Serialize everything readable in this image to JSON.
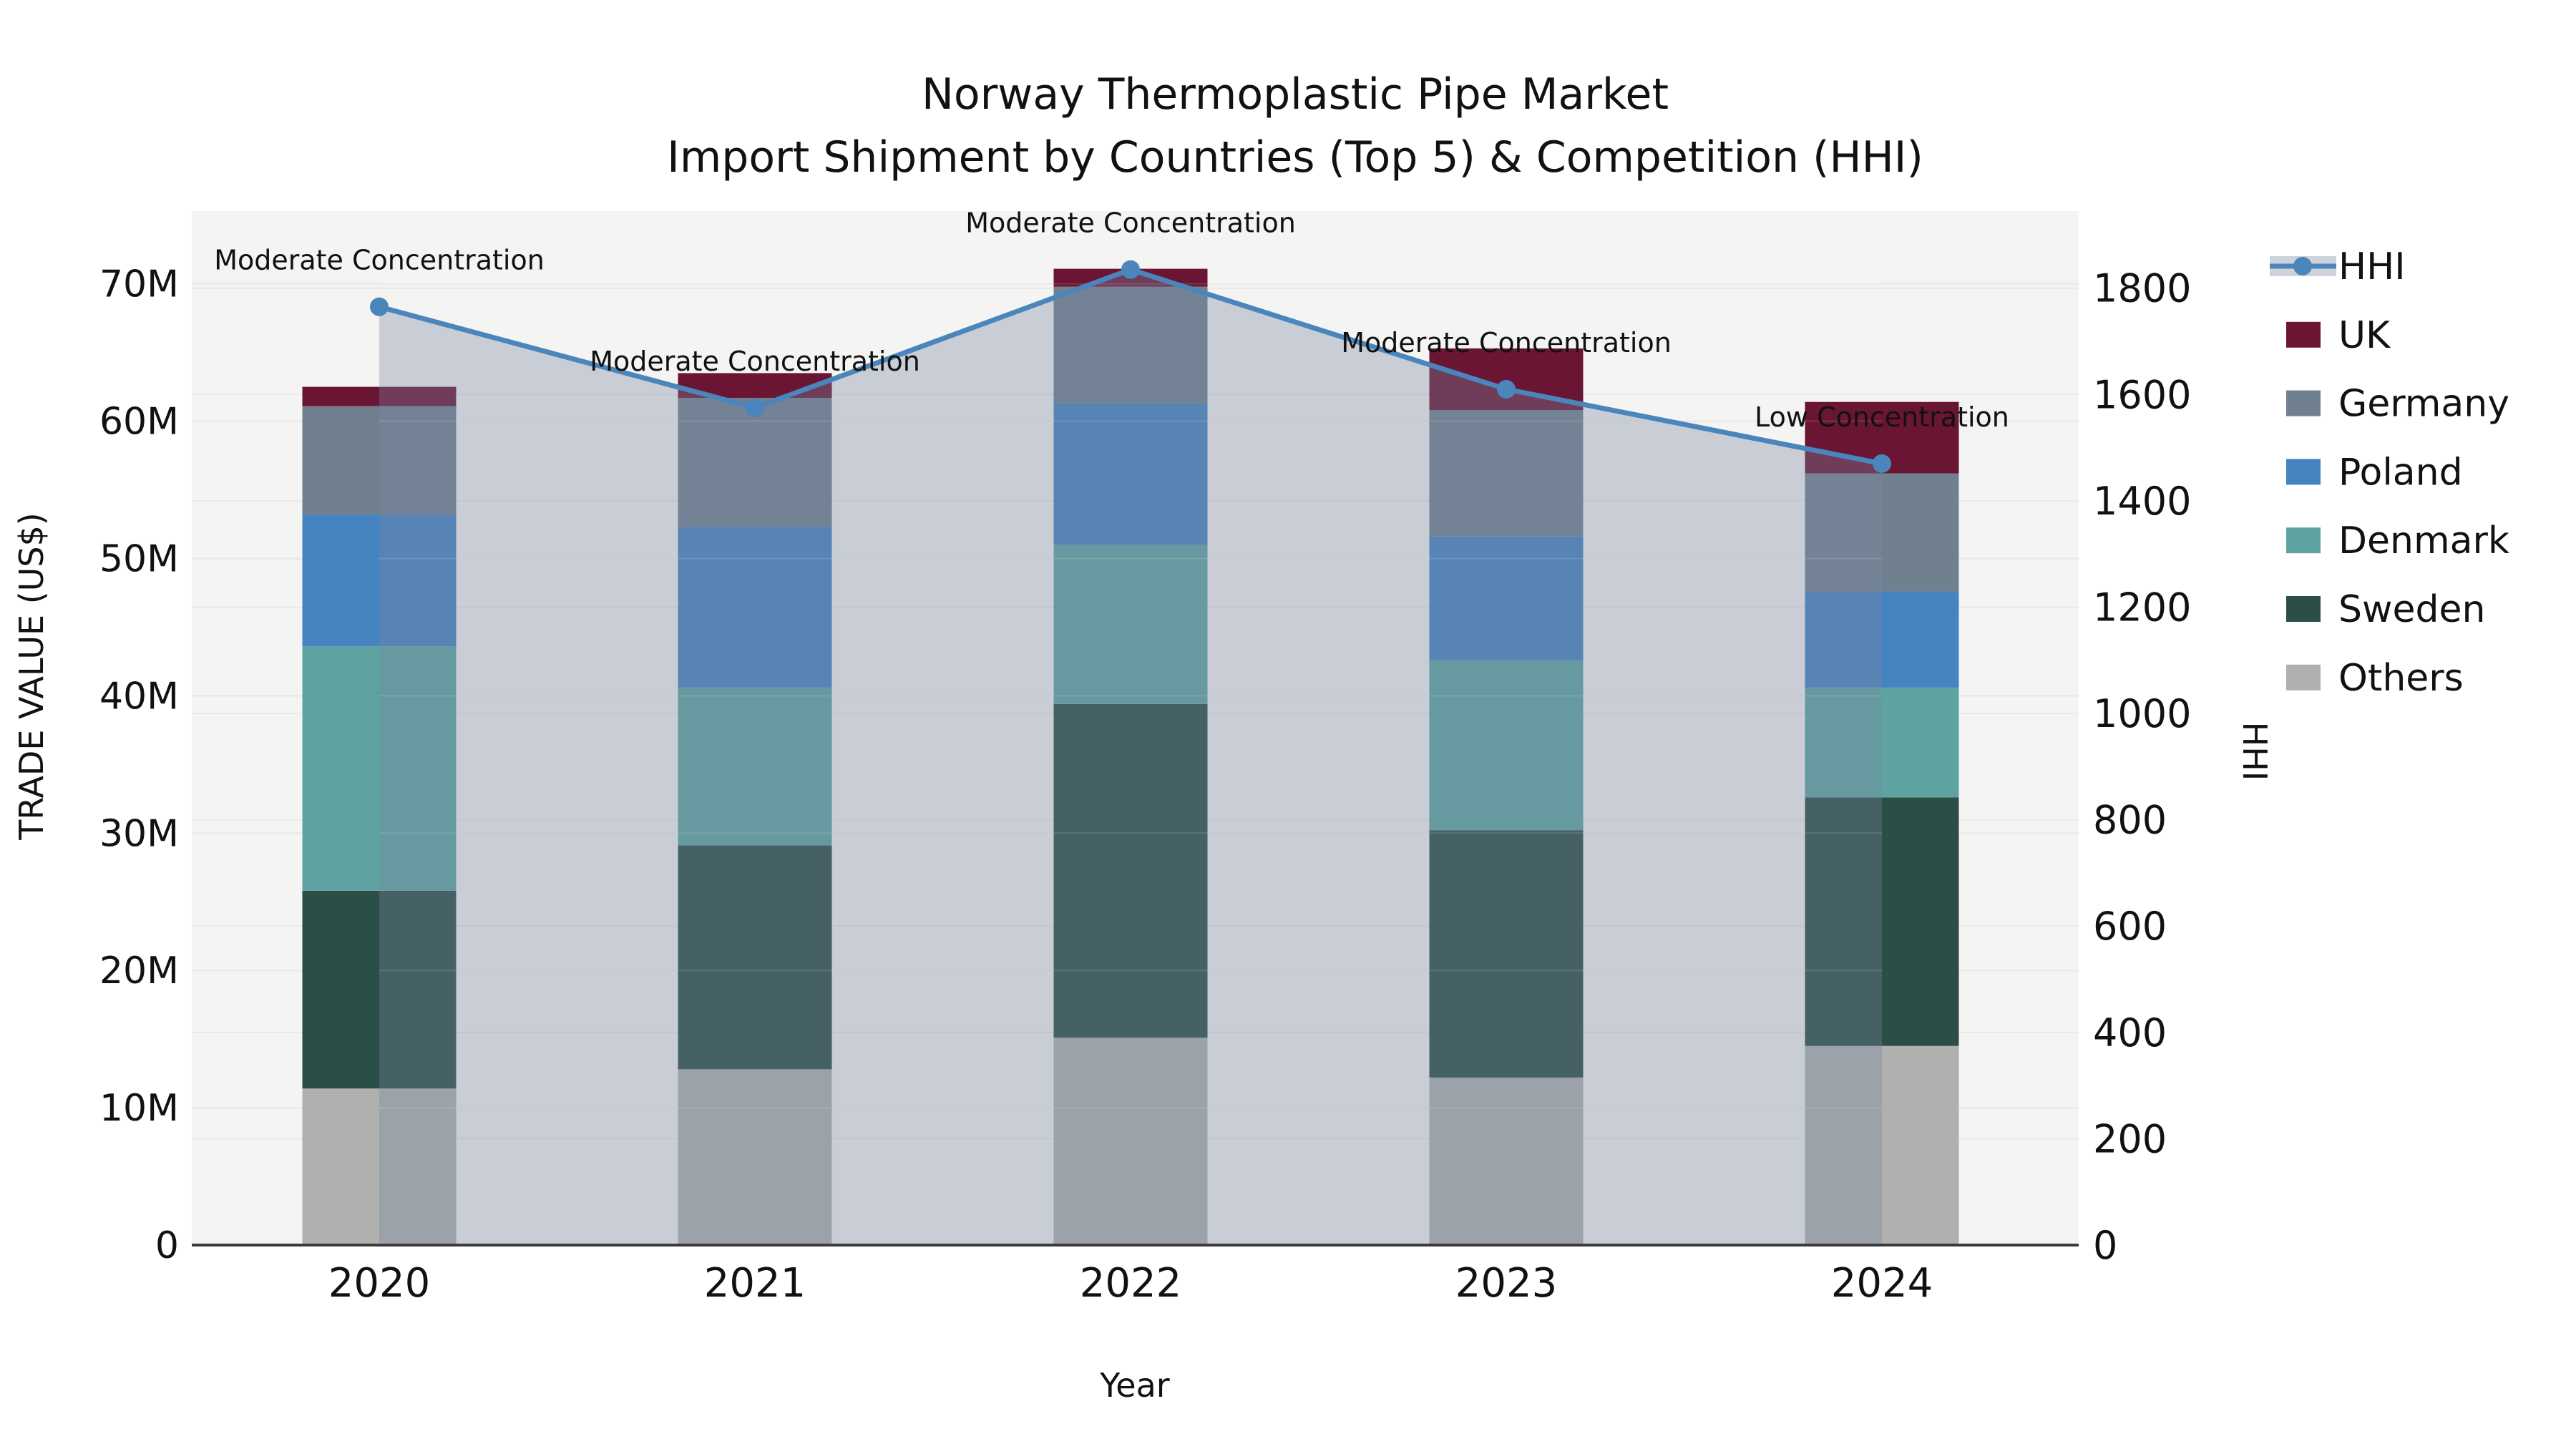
{
  "chart_data": {
    "type": "bar",
    "subtype": "stacked-bar-with-line-overlay",
    "title_line1": "Norway Thermoplastic Pipe Market",
    "title_line2": "Import Shipment by Countries (Top 5) & Competition (HHI)",
    "xlabel": "Year",
    "ylabel": "TRADE VALUE (US$)",
    "y2label": "HHI",
    "categories": [
      "2020",
      "2021",
      "2022",
      "2023",
      "2024"
    ],
    "series": [
      {
        "name": "Others",
        "color": "#b0b1ae",
        "values": [
          11.4,
          12.8,
          15.1,
          12.2,
          14.5
        ]
      },
      {
        "name": "Sweden",
        "color": "#2b4e46",
        "values": [
          14.4,
          16.3,
          24.3,
          18.0,
          18.1
        ]
      },
      {
        "name": "Denmark",
        "color": "#5ea3a2",
        "values": [
          17.8,
          11.5,
          11.6,
          12.4,
          8.0
        ]
      },
      {
        "name": "Poland",
        "color": "#4583c1",
        "values": [
          9.6,
          11.7,
          10.3,
          9.0,
          7.0
        ]
      },
      {
        "name": "Germany",
        "color": "#71808f",
        "values": [
          7.9,
          9.4,
          8.5,
          9.2,
          8.6
        ]
      },
      {
        "name": "UK",
        "color": "#6b1535",
        "values": [
          1.4,
          1.8,
          1.3,
          4.5,
          5.2
        ]
      }
    ],
    "values_unit": "millions of US$",
    "line_series": {
      "name": "HHI",
      "color": "#4a85bb",
      "area_overlay_color": "rgba(120,135,160,0.35)",
      "legend_band_color": "#cdd2db",
      "values": [
        1765,
        1575,
        1835,
        1610,
        1470
      ]
    },
    "annotations": [
      "Moderate Concentration",
      "Moderate Concentration",
      "Moderate Concentration",
      "Moderate Concentration",
      "Low Concentration"
    ],
    "y_ticks": [
      {
        "value": 0,
        "label": "0"
      },
      {
        "value": 10,
        "label": "10M"
      },
      {
        "value": 20,
        "label": "20M"
      },
      {
        "value": 30,
        "label": "30M"
      },
      {
        "value": 40,
        "label": "40M"
      },
      {
        "value": 50,
        "label": "50M"
      },
      {
        "value": 60,
        "label": "60M"
      },
      {
        "value": 70,
        "label": "70M"
      }
    ],
    "y2_ticks": [
      {
        "value": 0,
        "label": "0"
      },
      {
        "value": 200,
        "label": "200"
      },
      {
        "value": 400,
        "label": "400"
      },
      {
        "value": 600,
        "label": "600"
      },
      {
        "value": 800,
        "label": "800"
      },
      {
        "value": 1000,
        "label": "1000"
      },
      {
        "value": 1200,
        "label": "1200"
      },
      {
        "value": 1400,
        "label": "1400"
      },
      {
        "value": 1600,
        "label": "1600"
      },
      {
        "value": 1800,
        "label": "1800"
      }
    ],
    "ylim": [
      0,
      75.3
    ],
    "y2lim": [
      0,
      1945
    ],
    "grid": true,
    "plot_bg_color": "#f4f4f3",
    "gridline_color": "#e9e9e8",
    "spine_color": "#3a3a3a",
    "legend_position": "right",
    "legend_order": [
      "HHI",
      "UK",
      "Germany",
      "Poland",
      "Denmark",
      "Sweden",
      "Others"
    ]
  }
}
